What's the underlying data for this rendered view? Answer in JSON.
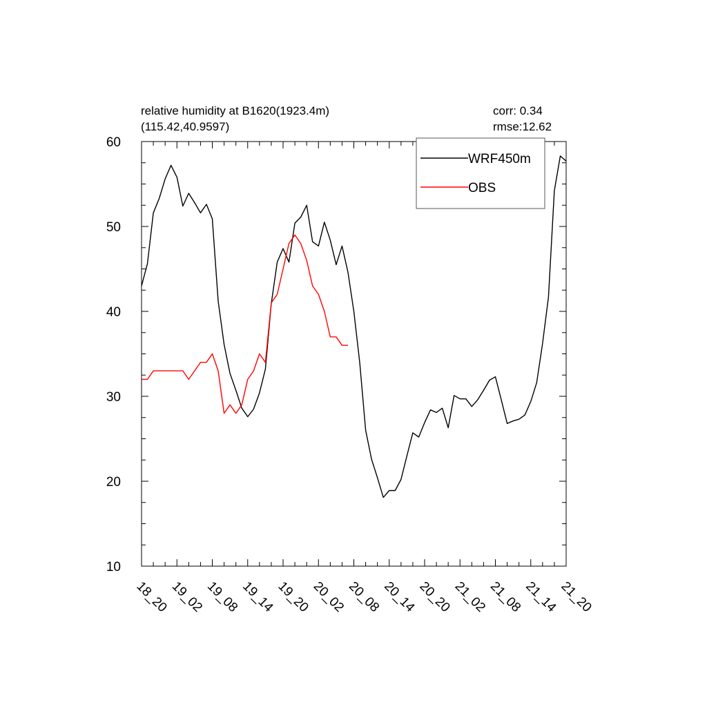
{
  "chart_data": {
    "type": "line",
    "title_lines": [
      "relative humidity at B1620(1923.4m)",
      "(115.42,40.9597)"
    ],
    "stats_lines": [
      "corr:  0.34",
      "rmse:12.62"
    ],
    "xlabel": "",
    "ylabel": "",
    "ylim": [
      10,
      60
    ],
    "y_ticks": [
      10,
      20,
      30,
      40,
      50,
      60
    ],
    "y_tick_labels": [
      "10",
      "20",
      "30",
      "40",
      "50",
      "60"
    ],
    "y_minor_step": 2.5,
    "xlim": [
      0,
      72
    ],
    "x_ticks": [
      0,
      6,
      12,
      18,
      24,
      30,
      36,
      42,
      48,
      54,
      60,
      66,
      72
    ],
    "x_tick_labels": [
      "18_20",
      "19_02",
      "19_08",
      "19_14",
      "19_20",
      "20_02",
      "20_08",
      "20_14",
      "20_20",
      "21_02",
      "21_08",
      "21_14",
      "21_20"
    ],
    "x_minor_step": 2,
    "grid": false,
    "legend_position": "top-right",
    "series": [
      {
        "name": "WRF450m",
        "color": "#000000",
        "x": [
          0,
          1,
          2,
          3,
          4,
          5,
          6,
          7,
          8,
          9,
          10,
          11,
          12,
          13,
          14,
          15,
          16,
          17,
          18,
          19,
          20,
          21,
          22,
          23,
          24,
          25,
          26,
          27,
          28,
          29,
          30,
          31,
          32,
          33,
          34,
          35,
          36,
          37,
          38,
          39,
          40,
          41,
          42,
          43,
          44,
          45,
          46,
          47,
          48,
          49,
          50,
          51,
          52,
          53,
          54,
          55,
          56,
          57,
          58,
          59,
          60,
          61,
          62,
          63,
          64,
          65,
          66,
          67,
          68,
          69,
          70,
          71,
          72
        ],
        "values": [
          43.0,
          45.6,
          51.6,
          53.3,
          55.6,
          57.2,
          55.8,
          52.4,
          53.9,
          52.8,
          51.6,
          52.6,
          50.9,
          41.2,
          36.1,
          32.7,
          30.7,
          28.6,
          27.6,
          28.5,
          30.4,
          33.2,
          40.9,
          45.8,
          47.4,
          45.8,
          50.4,
          51.1,
          52.5,
          48.2,
          47.7,
          50.5,
          48.4,
          45.5,
          47.7,
          44.6,
          40.0,
          34.0,
          26.0,
          22.6,
          20.4,
          18.1,
          18.9,
          18.9,
          20.2,
          23.0,
          25.7,
          25.2,
          26.9,
          28.4,
          28.1,
          28.6,
          26.3,
          30.1,
          29.7,
          29.7,
          28.8,
          29.6,
          30.7,
          31.9,
          32.3,
          29.6,
          26.8,
          27.1,
          27.3,
          27.8,
          29.4,
          31.6,
          36.2,
          41.7,
          54.2,
          58.3,
          57.7
        ]
      },
      {
        "name": "OBS",
        "color": "#ff0000",
        "x": [
          0,
          1,
          2,
          3,
          4,
          5,
          6,
          7,
          8,
          9,
          10,
          11,
          12,
          13,
          14,
          15,
          16,
          17,
          18,
          19,
          20,
          21,
          22,
          23,
          24,
          25,
          26,
          27,
          28,
          29,
          30,
          31,
          32,
          33,
          34,
          35
        ],
        "values": [
          32,
          32,
          33,
          33,
          33,
          33,
          33,
          33,
          32,
          33,
          34,
          34,
          35,
          33,
          28,
          29,
          28,
          29,
          32,
          33,
          35,
          34,
          41,
          42,
          45,
          48,
          49,
          48,
          46,
          43,
          42,
          40,
          37,
          37,
          36,
          36
        ]
      }
    ]
  }
}
